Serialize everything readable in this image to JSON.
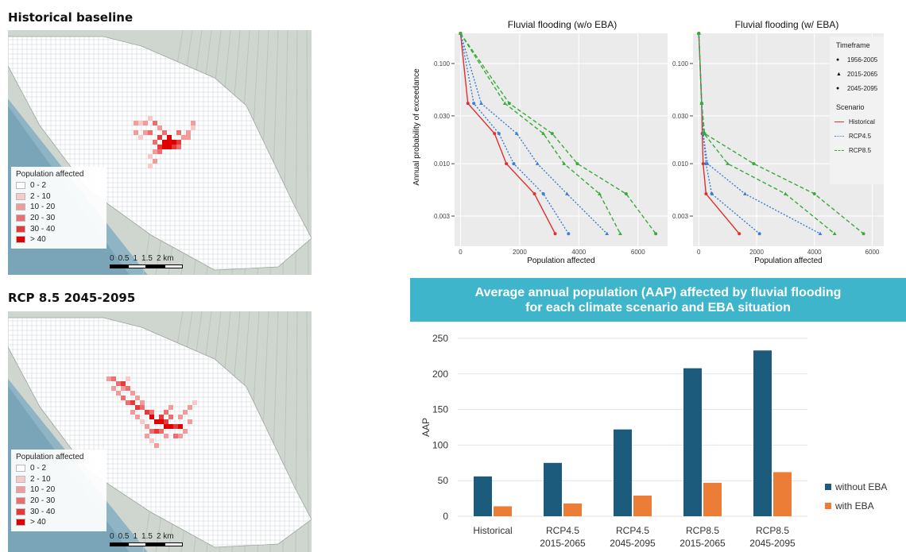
{
  "maps": [
    {
      "title": "Historical baseline",
      "legend_title": "Population affected",
      "legend": [
        "0 - 2",
        "2 - 10",
        "10 - 20",
        "20 - 30",
        "30 - 40",
        "> 40"
      ],
      "scale": [
        "0",
        "0.5",
        "1",
        "1.5",
        "2 km"
      ]
    },
    {
      "title": "RCP 8.5 2045-2095",
      "legend_title": "Population affected",
      "legend": [
        "0 - 2",
        "2 - 10",
        "10 - 20",
        "20 - 30",
        "30 - 40",
        "> 40"
      ],
      "scale": [
        "0",
        "0.5",
        "1",
        "1.5",
        "2 km"
      ]
    }
  ],
  "colors": {
    "legend_classes": [
      "#ffffff",
      "#f8c9c9",
      "#f29b9b",
      "#ec6f6f",
      "#e63a3a",
      "#e00000"
    ],
    "historical": "#e03030",
    "rcp45": "#3a7fd0",
    "rcp85": "#3aaa3a",
    "without_eba": "#1d5b7d",
    "with_eba": "#ec7d36",
    "banner": "#3fb5cc"
  },
  "chart_data": [
    {
      "type": "line",
      "title": "Fluvial flooding (w/o EBA)",
      "xlabel": "Population affected",
      "ylabel": "Annual probability of exceedance",
      "yscale": "log",
      "xlim": [
        -200,
        7000
      ],
      "ylim": [
        0.0015,
        0.2
      ],
      "xticks": [
        0,
        2000,
        4000,
        6000
      ],
      "xtick_labels": [
        "0",
        "2000",
        "4000",
        "6000"
      ],
      "yticks": [
        0.1,
        0.03,
        0.01,
        0.003
      ],
      "ytick_labels": [
        "0.100",
        "0.030",
        "0.010",
        "0.003"
      ],
      "grid": true,
      "series": [
        {
          "name": "Historical",
          "x": [
            0,
            250,
            1150,
            1550,
            2500,
            3200
          ],
          "y": [
            0.2,
            0.04,
            0.02,
            0.01,
            0.005,
            0.002
          ]
        },
        {
          "name": "RCP4.5 1956-2005",
          "x": [
            0,
            450,
            1300,
            1800,
            2800,
            3650
          ],
          "y": [
            0.2,
            0.04,
            0.02,
            0.01,
            0.005,
            0.002
          ]
        },
        {
          "name": "RCP4.5 2015-2065",
          "x": [
            0,
            700,
            1900,
            2600,
            3600,
            4950
          ],
          "y": [
            0.2,
            0.04,
            0.02,
            0.01,
            0.005,
            0.002
          ]
        },
        {
          "name": "RCP8.5 2015-2065",
          "x": [
            0,
            1500,
            2800,
            3500,
            4700,
            5400
          ],
          "y": [
            0.2,
            0.04,
            0.02,
            0.01,
            0.005,
            0.002
          ]
        },
        {
          "name": "RCP8.5 2045-2095",
          "x": [
            0,
            1650,
            3100,
            3950,
            5600,
            6600
          ],
          "y": [
            0.2,
            0.04,
            0.02,
            0.01,
            0.005,
            0.002
          ]
        }
      ]
    },
    {
      "type": "line",
      "title": "Fluvial flooding (w/ EBA)",
      "xlabel": "Population affected",
      "yscale": "log",
      "xlim": [
        -200,
        6400
      ],
      "ylim": [
        0.0015,
        0.2
      ],
      "xticks": [
        0,
        2000,
        4000,
        6000
      ],
      "xtick_labels": [
        "0",
        "2000",
        "4000",
        "6000"
      ],
      "yticks": [
        0.1,
        0.03,
        0.01,
        0.003
      ],
      "ytick_labels": [
        "0.100",
        "0.030",
        "0.010",
        "0.003"
      ],
      "grid": true,
      "legend": {
        "timeframe_title": "Timeframe",
        "timeframe": [
          "1956-2005",
          "2015-2065",
          "2045-2095"
        ],
        "scenario_title": "Scenario",
        "scenario": [
          "Historical",
          "RCP4.5",
          "RCP8.5"
        ],
        "placement": "right"
      },
      "series": [
        {
          "name": "Historical",
          "x": [
            0,
            100,
            120,
            150,
            250,
            1400
          ],
          "y": [
            0.2,
            0.04,
            0.02,
            0.01,
            0.005,
            0.002
          ]
        },
        {
          "name": "RCP4.5 1956-2005",
          "x": [
            0,
            100,
            150,
            250,
            450,
            2100
          ],
          "y": [
            0.2,
            0.04,
            0.02,
            0.01,
            0.005,
            0.002
          ]
        },
        {
          "name": "RCP4.5 2015-2065",
          "x": [
            0,
            100,
            150,
            300,
            1600,
            4200
          ],
          "y": [
            0.2,
            0.04,
            0.02,
            0.01,
            0.005,
            0.002
          ]
        },
        {
          "name": "RCP8.5 2015-2065",
          "x": [
            0,
            100,
            180,
            1000,
            3000,
            4700
          ],
          "y": [
            0.2,
            0.04,
            0.02,
            0.01,
            0.005,
            0.002
          ]
        },
        {
          "name": "RCP8.5 2045-2095",
          "x": [
            0,
            100,
            200,
            1900,
            4000,
            5700
          ],
          "y": [
            0.2,
            0.04,
            0.02,
            0.01,
            0.005,
            0.002
          ]
        }
      ]
    },
    {
      "type": "bar",
      "title": "Average annual population (AAP) affected by fluvial flooding for each climate scenario and EBA situation",
      "title_lines": [
        "Average annual population (AAP) affected by fluvial flooding",
        "for each climate scenario and EBA situation"
      ],
      "ylabel": "AAP",
      "ylim": [
        0,
        250
      ],
      "yticks": [
        0,
        50,
        100,
        150,
        200,
        250
      ],
      "categories": [
        [
          "Historical"
        ],
        [
          "RCP4.5",
          "2015-2065"
        ],
        [
          "RCP4.5",
          "2045-2095"
        ],
        [
          "RCP8.5",
          "2015-2065"
        ],
        [
          "RCP8.5",
          "2045-2095"
        ]
      ],
      "series": [
        {
          "name": "without EBA",
          "values": [
            56,
            75,
            122,
            208,
            233
          ]
        },
        {
          "name": "with EBA",
          "values": [
            14,
            18,
            29,
            47,
            62
          ]
        }
      ],
      "legend_placement": "right"
    }
  ]
}
